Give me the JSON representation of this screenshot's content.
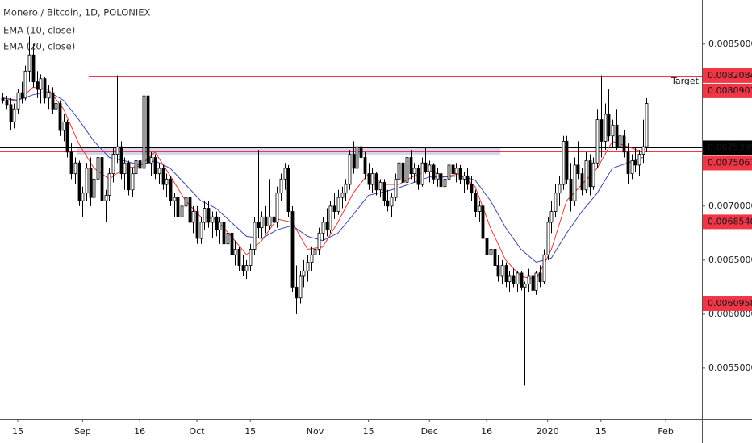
{
  "chart_data": {
    "type": "candlestick",
    "title": "Monero / Bitcoin, 1D, POLONIEX",
    "up_color": "#ffffff",
    "down_color": "#000000",
    "border_color": "#000000",
    "xlim": [
      -0.66,
      183.5
    ],
    "xticks": [
      {
        "value": 4,
        "label": "15"
      },
      {
        "value": 21,
        "label": "Sep"
      },
      {
        "value": 36,
        "label": "16"
      },
      {
        "value": 51,
        "label": "Oct"
      },
      {
        "value": 65,
        "label": "15"
      },
      {
        "value": 82,
        "label": "Nov"
      },
      {
        "value": 96,
        "label": "15"
      },
      {
        "value": 112,
        "label": "Dec"
      },
      {
        "value": 127,
        "label": "16"
      },
      {
        "value": 143,
        "label": "2020"
      },
      {
        "value": 157,
        "label": "15"
      },
      {
        "value": 174,
        "label": "Feb"
      }
    ],
    "ylim": [
      0.005029,
      0.008909
    ],
    "yticks": [
      {
        "value": 0.0085,
        "label": "0.00850000"
      },
      {
        "value": 0.007,
        "label": "0.00700000"
      },
      {
        "value": 0.0065,
        "label": "0.00650000"
      },
      {
        "value": 0.006,
        "label": "0.00600000"
      },
      {
        "value": 0.0055,
        "label": "0.00550000"
      }
    ],
    "ohlc": [
      [
        0.008,
        0.00805,
        0.00795,
        0.00798
      ],
      [
        0.00798,
        0.00802,
        0.0079,
        0.00794
      ],
      [
        0.00794,
        0.008,
        0.0077,
        0.00778
      ],
      [
        0.00778,
        0.00795,
        0.00772,
        0.0079
      ],
      [
        0.0079,
        0.00808,
        0.00785,
        0.00805
      ],
      [
        0.00805,
        0.00815,
        0.00795,
        0.008
      ],
      [
        0.008,
        0.0083,
        0.00798,
        0.00825
      ],
      [
        0.00825,
        0.00857,
        0.00815,
        0.0084
      ],
      [
        0.0084,
        0.0085,
        0.0081,
        0.00815
      ],
      [
        0.00815,
        0.00825,
        0.008,
        0.00808
      ],
      [
        0.00808,
        0.00822,
        0.00795,
        0.00818
      ],
      [
        0.00818,
        0.0082,
        0.00795,
        0.008
      ],
      [
        0.008,
        0.00812,
        0.0079,
        0.00805
      ],
      [
        0.00805,
        0.0081,
        0.00785,
        0.0079
      ],
      [
        0.0079,
        0.008,
        0.00775,
        0.00795
      ],
      [
        0.00795,
        0.00798,
        0.00765,
        0.0077
      ],
      [
        0.0077,
        0.00785,
        0.0076,
        0.00778
      ],
      [
        0.00778,
        0.0078,
        0.00745,
        0.0075
      ],
      [
        0.0075,
        0.00758,
        0.00725,
        0.0073
      ],
      [
        0.0073,
        0.00745,
        0.0072,
        0.0074
      ],
      [
        0.0074,
        0.00742,
        0.007,
        0.00705
      ],
      [
        0.00705,
        0.00718,
        0.0069,
        0.00712
      ],
      [
        0.00712,
        0.0074,
        0.00705,
        0.00735
      ],
      [
        0.00735,
        0.00745,
        0.007,
        0.00708
      ],
      [
        0.00708,
        0.0073,
        0.00698,
        0.00725
      ],
      [
        0.00725,
        0.0075,
        0.00715,
        0.00745
      ],
      [
        0.00745,
        0.0075,
        0.007,
        0.00705
      ],
      [
        0.00705,
        0.00715,
        0.00685,
        0.0071
      ],
      [
        0.0071,
        0.00735,
        0.00705,
        0.0073
      ],
      [
        0.0073,
        0.00755,
        0.00722,
        0.00748
      ],
      [
        0.00748,
        0.00821,
        0.0074,
        0.00755
      ],
      [
        0.00755,
        0.0076,
        0.00725,
        0.0073
      ],
      [
        0.0073,
        0.00745,
        0.00715,
        0.0074
      ],
      [
        0.0074,
        0.00742,
        0.0071,
        0.00715
      ],
      [
        0.00715,
        0.00735,
        0.00708,
        0.0073
      ],
      [
        0.0073,
        0.00748,
        0.0072,
        0.00742
      ],
      [
        0.00742,
        0.00745,
        0.00725,
        0.00735
      ],
      [
        0.00735,
        0.00808,
        0.0073,
        0.00802
      ],
      [
        0.00802,
        0.00805,
        0.00735,
        0.0074
      ],
      [
        0.0074,
        0.0075,
        0.00728,
        0.00745
      ],
      [
        0.00745,
        0.00748,
        0.00725,
        0.0073
      ],
      [
        0.0073,
        0.0074,
        0.0072,
        0.00735
      ],
      [
        0.00735,
        0.00738,
        0.00715,
        0.0072
      ],
      [
        0.0072,
        0.0073,
        0.00708,
        0.00725
      ],
      [
        0.00725,
        0.00728,
        0.007,
        0.00705
      ],
      [
        0.00705,
        0.00712,
        0.0069,
        0.00708
      ],
      [
        0.00708,
        0.0071,
        0.00685,
        0.0069
      ],
      [
        0.0069,
        0.00705,
        0.0068,
        0.007
      ],
      [
        0.007,
        0.00712,
        0.0069,
        0.00708
      ],
      [
        0.00708,
        0.0071,
        0.0068,
        0.00685
      ],
      [
        0.00685,
        0.007,
        0.00675,
        0.00695
      ],
      [
        0.00695,
        0.007,
        0.00665,
        0.0067
      ],
      [
        0.0067,
        0.0069,
        0.00665,
        0.00685
      ],
      [
        0.00685,
        0.00705,
        0.00678,
        0.00698
      ],
      [
        0.00698,
        0.00705,
        0.0068,
        0.00685
      ],
      [
        0.00685,
        0.00695,
        0.0067,
        0.0069
      ],
      [
        0.0069,
        0.00695,
        0.00672,
        0.00678
      ],
      [
        0.00678,
        0.0069,
        0.00665,
        0.00685
      ],
      [
        0.00685,
        0.00688,
        0.0066,
        0.00665
      ],
      [
        0.00665,
        0.0068,
        0.00655,
        0.00675
      ],
      [
        0.00675,
        0.00678,
        0.0065,
        0.00655
      ],
      [
        0.00655,
        0.00668,
        0.00645,
        0.0066
      ],
      [
        0.0066,
        0.00662,
        0.0064,
        0.00645
      ],
      [
        0.00645,
        0.00655,
        0.00635,
        0.0064
      ],
      [
        0.0064,
        0.0065,
        0.00632,
        0.00645
      ],
      [
        0.00645,
        0.00665,
        0.0064,
        0.0066
      ],
      [
        0.0066,
        0.0069,
        0.00655,
        0.00685
      ],
      [
        0.00685,
        0.00752,
        0.0067,
        0.0068
      ],
      [
        0.0068,
        0.00695,
        0.0067,
        0.0069
      ],
      [
        0.0069,
        0.007,
        0.00675,
        0.00682
      ],
      [
        0.00682,
        0.00725,
        0.00678,
        0.0069
      ],
      [
        0.0069,
        0.007,
        0.0068,
        0.00685
      ],
      [
        0.00685,
        0.00718,
        0.0068,
        0.00712
      ],
      [
        0.00712,
        0.0073,
        0.00705,
        0.00725
      ],
      [
        0.00725,
        0.0074,
        0.00715,
        0.00735
      ],
      [
        0.00735,
        0.00738,
        0.0069,
        0.00695
      ],
      [
        0.00695,
        0.007,
        0.0062,
        0.00625
      ],
      [
        0.00625,
        0.00645,
        0.006,
        0.00615
      ],
      [
        0.00615,
        0.0064,
        0.0061,
        0.00635
      ],
      [
        0.00635,
        0.0065,
        0.00625,
        0.0064
      ],
      [
        0.0064,
        0.00655,
        0.0063,
        0.00648
      ],
      [
        0.00648,
        0.00662,
        0.0064,
        0.00655
      ],
      [
        0.00655,
        0.00665,
        0.0064,
        0.0066
      ],
      [
        0.0066,
        0.0068,
        0.00655,
        0.00675
      ],
      [
        0.00675,
        0.0069,
        0.00668,
        0.00685
      ],
      [
        0.00685,
        0.00698,
        0.00672,
        0.00678
      ],
      [
        0.00678,
        0.00705,
        0.00675,
        0.007
      ],
      [
        0.007,
        0.00712,
        0.00688,
        0.00695
      ],
      [
        0.00695,
        0.00715,
        0.00692,
        0.00708
      ],
      [
        0.00708,
        0.00718,
        0.00698,
        0.00712
      ],
      [
        0.00712,
        0.00725,
        0.00705,
        0.0072
      ],
      [
        0.0072,
        0.00752,
        0.00715,
        0.00748
      ],
      [
        0.00748,
        0.0076,
        0.0073,
        0.00735
      ],
      [
        0.00735,
        0.00762,
        0.00732,
        0.00755
      ],
      [
        0.00755,
        0.00765,
        0.0074,
        0.00745
      ],
      [
        0.00745,
        0.0075,
        0.00725,
        0.0073
      ],
      [
        0.0073,
        0.0074,
        0.00715,
        0.0072
      ],
      [
        0.0072,
        0.00735,
        0.00712,
        0.0073
      ],
      [
        0.0073,
        0.00732,
        0.0071,
        0.00715
      ],
      [
        0.00715,
        0.00725,
        0.00708,
        0.00722
      ],
      [
        0.00722,
        0.00725,
        0.007,
        0.00705
      ],
      [
        0.00705,
        0.00715,
        0.00695,
        0.007
      ],
      [
        0.007,
        0.00712,
        0.0069,
        0.00708
      ],
      [
        0.00708,
        0.0073,
        0.00705,
        0.00725
      ],
      [
        0.00725,
        0.00755,
        0.0072,
        0.0074
      ],
      [
        0.0074,
        0.00745,
        0.00718,
        0.00722
      ],
      [
        0.00722,
        0.0075,
        0.0072,
        0.00745
      ],
      [
        0.00745,
        0.00752,
        0.00725,
        0.0073
      ],
      [
        0.0073,
        0.0074,
        0.00722,
        0.00735
      ],
      [
        0.00735,
        0.00738,
        0.00715,
        0.0072
      ],
      [
        0.0072,
        0.00745,
        0.00718,
        0.0074
      ],
      [
        0.0074,
        0.00755,
        0.0073,
        0.00732
      ],
      [
        0.00732,
        0.00742,
        0.00722,
        0.00738
      ],
      [
        0.00738,
        0.0074,
        0.0072,
        0.00725
      ],
      [
        0.00725,
        0.00735,
        0.00718,
        0.0073
      ],
      [
        0.0073,
        0.00732,
        0.00712,
        0.00718
      ],
      [
        0.00718,
        0.00728,
        0.0071,
        0.00725
      ],
      [
        0.00725,
        0.00742,
        0.0072,
        0.00738
      ],
      [
        0.00738,
        0.00745,
        0.00725,
        0.0073
      ],
      [
        0.0073,
        0.0074,
        0.00722,
        0.00735
      ],
      [
        0.00735,
        0.00738,
        0.0072,
        0.00725
      ],
      [
        0.00725,
        0.00732,
        0.00712,
        0.00728
      ],
      [
        0.00728,
        0.00735,
        0.00715,
        0.0072
      ],
      [
        0.0072,
        0.00728,
        0.00705,
        0.00712
      ],
      [
        0.00712,
        0.00715,
        0.0069,
        0.00695
      ],
      [
        0.00695,
        0.00705,
        0.00685,
        0.007
      ],
      [
        0.007,
        0.00702,
        0.00665,
        0.0067
      ],
      [
        0.0067,
        0.0068,
        0.0065,
        0.00655
      ],
      [
        0.00655,
        0.00668,
        0.00645,
        0.0066
      ],
      [
        0.0066,
        0.00662,
        0.0064,
        0.00645
      ],
      [
        0.00645,
        0.00655,
        0.0063,
        0.00635
      ],
      [
        0.00635,
        0.0065,
        0.00628,
        0.00645
      ],
      [
        0.00645,
        0.00648,
        0.00625,
        0.0063
      ],
      [
        0.0063,
        0.0064,
        0.0062,
        0.00635
      ],
      [
        0.00635,
        0.00642,
        0.00625,
        0.00628
      ],
      [
        0.00628,
        0.0064,
        0.0062,
        0.00638
      ],
      [
        0.00638,
        0.0064,
        0.00622,
        0.00625
      ],
      [
        0.00625,
        0.0063,
        0.00534,
        0.00628
      ],
      [
        0.00628,
        0.00642,
        0.0062,
        0.00635
      ],
      [
        0.00635,
        0.00638,
        0.0062,
        0.00622
      ],
      [
        0.00622,
        0.0064,
        0.00618,
        0.00638
      ],
      [
        0.00638,
        0.00645,
        0.00625,
        0.0063
      ],
      [
        0.0063,
        0.0066,
        0.00628,
        0.00655
      ],
      [
        0.00655,
        0.0069,
        0.0065,
        0.00685
      ],
      [
        0.00685,
        0.00705,
        0.00675,
        0.00695
      ],
      [
        0.00695,
        0.0072,
        0.0069,
        0.00712
      ],
      [
        0.00712,
        0.00728,
        0.007,
        0.0072
      ],
      [
        0.0072,
        0.00765,
        0.00715,
        0.0076
      ],
      [
        0.0076,
        0.00765,
        0.0072,
        0.00725
      ],
      [
        0.00725,
        0.0074,
        0.00695,
        0.00705
      ],
      [
        0.00705,
        0.00745,
        0.007,
        0.00738
      ],
      [
        0.00738,
        0.0076,
        0.00725,
        0.0073
      ],
      [
        0.0073,
        0.00735,
        0.0071,
        0.00715
      ],
      [
        0.00715,
        0.0075,
        0.00712,
        0.00742
      ],
      [
        0.00742,
        0.00748,
        0.0071,
        0.00718
      ],
      [
        0.00718,
        0.00745,
        0.00715,
        0.0074
      ],
      [
        0.0074,
        0.0079,
        0.00735,
        0.0078
      ],
      [
        0.0078,
        0.00821,
        0.00745,
        0.0076
      ],
      [
        0.0076,
        0.00795,
        0.00752,
        0.00785
      ],
      [
        0.00785,
        0.00808,
        0.0076,
        0.00765
      ],
      [
        0.00765,
        0.0078,
        0.00755,
        0.00775
      ],
      [
        0.00775,
        0.0079,
        0.00752,
        0.00755
      ],
      [
        0.00755,
        0.00772,
        0.00748,
        0.00765
      ],
      [
        0.00765,
        0.0077,
        0.00745,
        0.0075
      ],
      [
        0.0075,
        0.00758,
        0.0072,
        0.0073
      ],
      [
        0.0073,
        0.00748,
        0.00725,
        0.00742
      ],
      [
        0.00742,
        0.00755,
        0.00732,
        0.00738
      ],
      [
        0.00738,
        0.00752,
        0.00728,
        0.00748
      ],
      [
        0.00748,
        0.0078,
        0.0074,
        0.00755
      ],
      [
        0.00755,
        0.008,
        0.0075,
        0.00795
      ]
    ],
    "series": [
      {
        "name": "EMA (10, close)",
        "color": "#e53935",
        "x": [
          0,
          4,
          8,
          12,
          16,
          20,
          24,
          28,
          32,
          36,
          40,
          44,
          48,
          52,
          56,
          60,
          64,
          68,
          72,
          76,
          80,
          84,
          88,
          92,
          96,
          100,
          104,
          108,
          112,
          116,
          120,
          124,
          128,
          132,
          136,
          140,
          144,
          148,
          152,
          156,
          160,
          164,
          168
        ],
        "values": [
          0.008,
          0.00797,
          0.0081,
          0.00808,
          0.0079,
          0.00758,
          0.00735,
          0.00725,
          0.00735,
          0.00737,
          0.0075,
          0.00728,
          0.00705,
          0.0069,
          0.00688,
          0.00672,
          0.00655,
          0.00668,
          0.00688,
          0.00685,
          0.0066,
          0.00662,
          0.00685,
          0.00712,
          0.0073,
          0.0072,
          0.0072,
          0.00728,
          0.00733,
          0.00727,
          0.0073,
          0.00718,
          0.0068,
          0.0065,
          0.00635,
          0.00632,
          0.0066,
          0.00705,
          0.0072,
          0.00735,
          0.0076,
          0.00755,
          0.0075
        ]
      },
      {
        "name": "EMA (20, close)",
        "color": "#3949ab",
        "x": [
          0,
          4,
          8,
          12,
          16,
          20,
          24,
          28,
          32,
          36,
          40,
          44,
          48,
          52,
          56,
          60,
          64,
          68,
          72,
          76,
          80,
          84,
          88,
          92,
          96,
          100,
          104,
          108,
          112,
          116,
          120,
          124,
          128,
          132,
          136,
          140,
          144,
          148,
          152,
          156,
          160,
          164,
          168
        ],
        "values": [
          0.008,
          0.00798,
          0.00803,
          0.00806,
          0.00798,
          0.0078,
          0.0076,
          0.00745,
          0.00742,
          0.00738,
          0.00742,
          0.00735,
          0.0072,
          0.00705,
          0.00698,
          0.00685,
          0.00672,
          0.0067,
          0.00678,
          0.00682,
          0.00672,
          0.00668,
          0.00675,
          0.00692,
          0.0071,
          0.00713,
          0.00717,
          0.00722,
          0.00727,
          0.00727,
          0.00728,
          0.00724,
          0.00705,
          0.0068,
          0.0066,
          0.00648,
          0.00652,
          0.00675,
          0.00695,
          0.00712,
          0.00735,
          0.0074,
          0.00745
        ]
      }
    ],
    "zone": {
      "xlim": [
        19.4,
        130.6
      ],
      "ylim": [
        0.00747,
        0.00754
      ],
      "color": "#9fa8da"
    },
    "price_lines": [
      {
        "value": 0.00820841,
        "color": "#f23645",
        "x_from": 22.6
      },
      {
        "value": 0.00809011,
        "color": "#f23645",
        "x_from": 22.6
      },
      {
        "value": 0.00753998,
        "color": "#000000",
        "x_from": -0.66
      },
      {
        "value": 0.00750673,
        "color": "#f23645",
        "x_from": -0.66
      },
      {
        "value": 0.00685407,
        "color": "#f23645",
        "x_from": -0.66
      },
      {
        "value": 0.00609582,
        "color": "#f23645",
        "x_from": -0.66
      }
    ],
    "annotation": "Target"
  }
}
